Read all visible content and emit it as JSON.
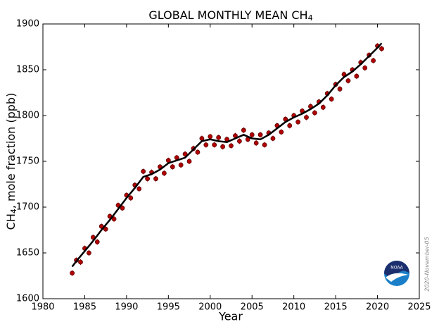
{
  "chart_data": {
    "type": "line",
    "title": "GLOBAL MONTHLY MEAN CH",
    "title_subscript": "4",
    "xlabel": "Year",
    "ylabel": "CH",
    "ylabel_subscript": "4",
    "ylabel_rest": ", mole fraction (ppb)",
    "annotation": "2020-November-05",
    "logo_text": "NOAA",
    "xlim": [
      1980,
      2025
    ],
    "xticks": [
      1980,
      1985,
      1990,
      1995,
      2000,
      2005,
      2010,
      2015,
      2020,
      2025
    ],
    "ylim": [
      1600,
      1900
    ],
    "yticks": [
      1600,
      1650,
      1700,
      1750,
      1800,
      1850,
      1900
    ],
    "series": [
      {
        "color": "#b30000",
        "style": "dots",
        "x": [
          1983.5,
          1984.0,
          1984.5,
          1985.0,
          1985.5,
          1986.0,
          1986.5,
          1987.0,
          1987.5,
          1988.0,
          1988.5,
          1989.0,
          1989.5,
          1990.0,
          1990.5,
          1991.0,
          1991.5,
          1992.0,
          1992.5,
          1993.0,
          1993.5,
          1994.0,
          1994.5,
          1995.0,
          1995.5,
          1996.0,
          1996.5,
          1997.0,
          1997.5,
          1998.0,
          1998.5,
          1999.0,
          1999.5,
          2000.0,
          2000.5,
          2001.0,
          2001.5,
          2002.0,
          2002.5,
          2003.0,
          2003.5,
          2004.0,
          2004.5,
          2005.0,
          2005.5,
          2006.0,
          2006.5,
          2007.0,
          2007.5,
          2008.0,
          2008.5,
          2009.0,
          2009.5,
          2010.0,
          2010.5,
          2011.0,
          2011.5,
          2012.0,
          2012.5,
          2013.0,
          2013.5,
          2014.0,
          2014.5,
          2015.0,
          2015.5,
          2016.0,
          2016.5,
          2017.0,
          2017.5,
          2018.0,
          2018.5,
          2019.0,
          2019.5,
          2020.0,
          2020.5
        ],
        "values": [
          1628,
          1642,
          1640,
          1655,
          1650,
          1667,
          1662,
          1679,
          1676,
          1690,
          1687,
          1702,
          1699,
          1713,
          1710,
          1724,
          1720,
          1739,
          1731,
          1738,
          1731,
          1744,
          1737,
          1751,
          1744,
          1754,
          1746,
          1758,
          1750,
          1764,
          1760,
          1775,
          1768,
          1777,
          1768,
          1776,
          1766,
          1774,
          1767,
          1778,
          1772,
          1784,
          1774,
          1779,
          1770,
          1779,
          1768,
          1781,
          1775,
          1789,
          1782,
          1796,
          1789,
          1800,
          1793,
          1805,
          1798,
          1810,
          1803,
          1815,
          1809,
          1824,
          1818,
          1834,
          1829,
          1845,
          1838,
          1850,
          1843,
          1858,
          1852,
          1866,
          1860,
          1876,
          1873
        ]
      },
      {
        "color": "#000000",
        "style": "line",
        "x": [
          1983.5,
          1984,
          1985,
          1986,
          1987,
          1988,
          1989,
          1990,
          1991,
          1992,
          1993,
          1994,
          1995,
          1996,
          1997,
          1998,
          1999,
          2000,
          2001,
          2002,
          2003,
          2004,
          2005,
          2006,
          2007,
          2008,
          2009,
          2010,
          2011,
          2012,
          2013,
          2014,
          2015,
          2016,
          2017,
          2018,
          2019,
          2020,
          2020.5
        ],
        "values": [
          1635,
          1641,
          1652,
          1663,
          1675,
          1686,
          1698,
          1710,
          1721,
          1733,
          1736,
          1741,
          1748,
          1751,
          1754,
          1763,
          1772,
          1774,
          1772,
          1771,
          1775,
          1779,
          1775,
          1774,
          1779,
          1786,
          1793,
          1798,
          1802,
          1807,
          1813,
          1822,
          1833,
          1842,
          1848,
          1856,
          1865,
          1874,
          1879
        ]
      }
    ]
  }
}
